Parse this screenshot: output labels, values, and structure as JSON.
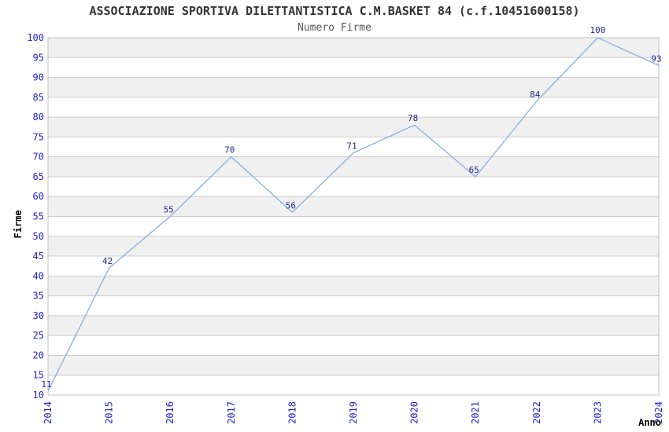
{
  "page": {
    "background": "#ffffff"
  },
  "chart_data": {
    "type": "line",
    "title": "ASSOCIAZIONE SPORTIVA DILETTANTISTICA C.M.BASKET 84 (c.f.10451600158)",
    "subtitle": "Numero Firme",
    "xlabel": "Anno",
    "ylabel": "Firme",
    "categories": [
      "2014",
      "2015",
      "2016",
      "2017",
      "2018",
      "2019",
      "2020",
      "2021",
      "2022",
      "2023",
      "2024"
    ],
    "series": [
      {
        "name": "Numero Firme",
        "values": [
          11,
          42,
          55,
          70,
          56,
          71,
          78,
          65,
          84,
          100,
          93
        ]
      }
    ],
    "point_labels": [
      "11",
      "42",
      "55",
      "70",
      "56",
      "71",
      "78",
      "65",
      "84",
      "100",
      "93"
    ],
    "ylim": [
      10,
      100
    ],
    "ytick_step": 5,
    "y_ticks": [
      10,
      15,
      20,
      25,
      30,
      35,
      40,
      45,
      50,
      55,
      60,
      65,
      70,
      75,
      80,
      85,
      90,
      95,
      100
    ],
    "grid": "horizontal-bands",
    "legend": "none",
    "colors": {
      "line": "#85b1e3",
      "point_label": "#232392",
      "tick_label": "#2222cc",
      "title": "#333333",
      "subtitle": "#555555",
      "axis_title": "#000000",
      "band": "#f0f0f0",
      "band_alt": "#ffffff",
      "gridline": "#cccccc",
      "plot_border": "#c0c0c0",
      "background": "#ffffff"
    }
  }
}
